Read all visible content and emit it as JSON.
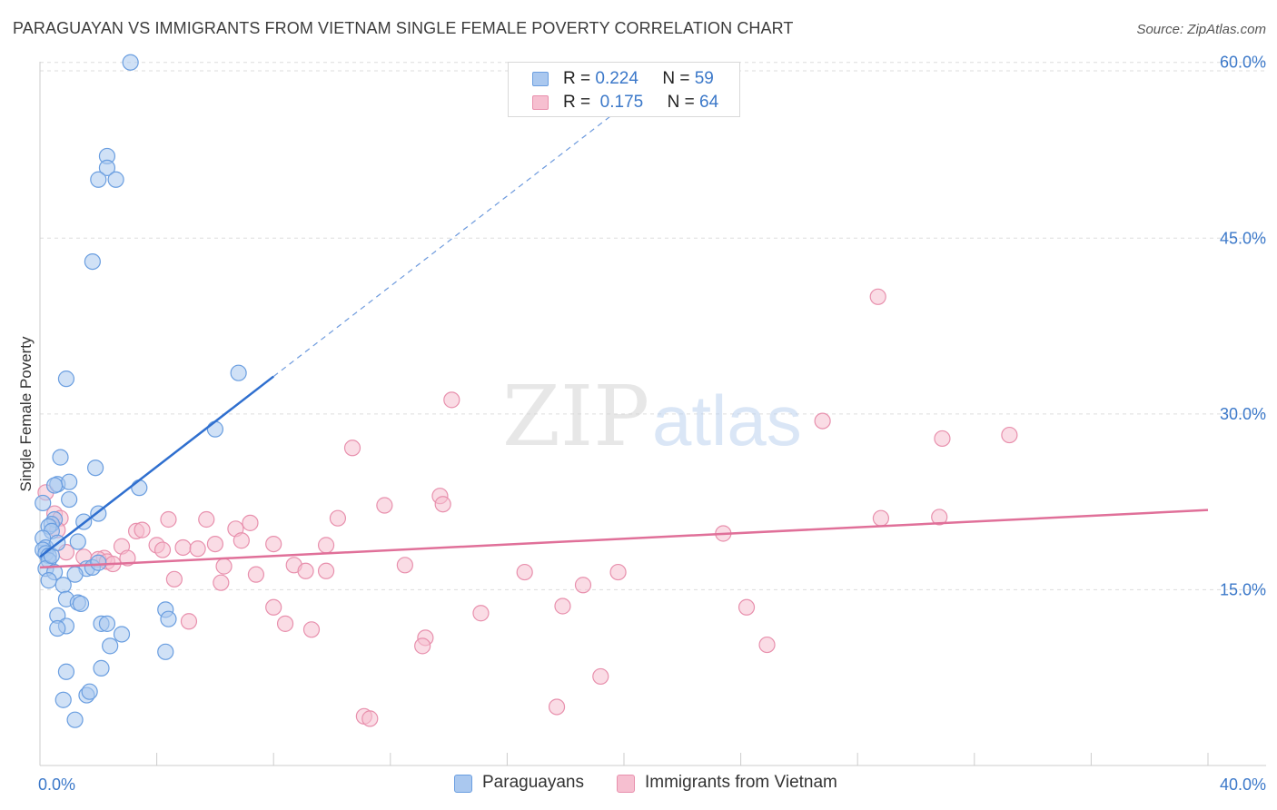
{
  "header": {
    "title": "PARAGUAYAN VS IMMIGRANTS FROM VIETNAM SINGLE FEMALE POVERTY CORRELATION CHART",
    "source": "Source: ZipAtlas.com"
  },
  "watermark": {
    "zip": "ZIP",
    "atlas": "atlas"
  },
  "legend": {
    "series1": {
      "r_label": "R =",
      "r_value": "0.224",
      "n_label": "N =",
      "n_value": "59"
    },
    "series2": {
      "r_label": "R =",
      "r_value": "0.175",
      "n_label": "N =",
      "n_value": "64"
    }
  },
  "bottom_legend": {
    "series1": "Paraguayans",
    "series2": "Immigrants from Vietnam"
  },
  "colors": {
    "blue_fill": "#aac8ef",
    "blue_stroke": "#6a9ee0",
    "blue_line": "#2f6fcf",
    "pink_fill": "#f6bfd0",
    "pink_stroke": "#e890ad",
    "pink_line": "#e07099",
    "tick": "#3b78c9",
    "grid": "#dddddd"
  },
  "chart_data": {
    "type": "scatter",
    "title": "PARAGUAYAN VS IMMIGRANTS FROM VIETNAM SINGLE FEMALE POVERTY CORRELATION CHART",
    "xlabel": "",
    "ylabel": "Single Female Poverty",
    "xlim": [
      0,
      40
    ],
    "ylim": [
      0,
      63
    ],
    "x_tick_labels": [
      "0.0%",
      "40.0%"
    ],
    "y_ticks": [
      15,
      30,
      45,
      60
    ],
    "y_tick_labels": [
      "15.0%",
      "30.0%",
      "45.0%",
      "60.0%"
    ],
    "grid": true,
    "series": [
      {
        "name": "Paraguayans",
        "R": 0.224,
        "N": 59,
        "trend": {
          "x0": 0.0,
          "y0": 17.8,
          "x1": 8.0,
          "y1": 33.2,
          "dash_to_x": 21.3,
          "dash_to_y": 58.8
        },
        "points": [
          [
            3.1,
            60.0
          ],
          [
            2.3,
            52.0
          ],
          [
            2.3,
            51.0
          ],
          [
            2.0,
            50.0
          ],
          [
            2.6,
            50.0
          ],
          [
            1.8,
            43.0
          ],
          [
            6.8,
            33.5
          ],
          [
            0.9,
            33.0
          ],
          [
            6.0,
            28.7
          ],
          [
            0.7,
            26.3
          ],
          [
            1.9,
            25.4
          ],
          [
            3.4,
            23.7
          ],
          [
            0.6,
            24.0
          ],
          [
            1.0,
            24.2
          ],
          [
            0.5,
            23.9
          ],
          [
            1.0,
            22.7
          ],
          [
            0.1,
            22.4
          ],
          [
            0.5,
            21.0
          ],
          [
            2.0,
            21.5
          ],
          [
            1.5,
            20.8
          ],
          [
            0.4,
            20.6
          ],
          [
            0.3,
            20.4
          ],
          [
            0.4,
            20.0
          ],
          [
            0.1,
            19.4
          ],
          [
            1.3,
            19.1
          ],
          [
            0.2,
            18.6
          ],
          [
            0.1,
            18.4
          ],
          [
            0.2,
            18.1
          ],
          [
            0.3,
            17.9
          ],
          [
            0.3,
            17.5
          ],
          [
            0.2,
            16.8
          ],
          [
            1.6,
            16.8
          ],
          [
            1.8,
            16.9
          ],
          [
            0.5,
            16.5
          ],
          [
            1.2,
            16.3
          ],
          [
            0.8,
            15.4
          ],
          [
            0.3,
            15.8
          ],
          [
            0.9,
            14.2
          ],
          [
            1.3,
            13.9
          ],
          [
            4.3,
            13.3
          ],
          [
            0.6,
            12.8
          ],
          [
            4.4,
            12.5
          ],
          [
            2.1,
            12.1
          ],
          [
            2.3,
            12.1
          ],
          [
            0.9,
            11.9
          ],
          [
            0.6,
            11.7
          ],
          [
            2.8,
            11.2
          ],
          [
            2.4,
            10.2
          ],
          [
            4.3,
            9.7
          ],
          [
            0.9,
            8.0
          ],
          [
            2.1,
            8.3
          ],
          [
            0.8,
            5.6
          ],
          [
            1.6,
            6.0
          ],
          [
            1.7,
            6.3
          ],
          [
            1.2,
            3.9
          ],
          [
            1.4,
            13.8
          ],
          [
            2.0,
            17.3
          ],
          [
            0.4,
            17.9
          ],
          [
            0.6,
            19.0
          ]
        ]
      },
      {
        "name": "Immigrants from Vietnam",
        "R": 0.175,
        "N": 64,
        "trend": {
          "x0": 0.0,
          "y0": 16.9,
          "x1": 40.0,
          "y1": 21.8
        },
        "points": [
          [
            28.7,
            40.0
          ],
          [
            14.1,
            31.2
          ],
          [
            26.8,
            29.4
          ],
          [
            30.9,
            27.9
          ],
          [
            33.2,
            28.2
          ],
          [
            10.7,
            27.1
          ],
          [
            0.2,
            23.3
          ],
          [
            0.5,
            21.5
          ],
          [
            13.7,
            23.0
          ],
          [
            13.8,
            22.3
          ],
          [
            11.8,
            22.2
          ],
          [
            0.7,
            21.1
          ],
          [
            4.4,
            21.0
          ],
          [
            5.7,
            21.0
          ],
          [
            7.2,
            20.7
          ],
          [
            10.2,
            21.1
          ],
          [
            28.8,
            21.1
          ],
          [
            30.8,
            21.2
          ],
          [
            6.7,
            20.2
          ],
          [
            3.3,
            20.0
          ],
          [
            3.5,
            20.1
          ],
          [
            0.6,
            20.1
          ],
          [
            23.4,
            19.8
          ],
          [
            6.9,
            19.2
          ],
          [
            6.0,
            18.9
          ],
          [
            4.0,
            18.8
          ],
          [
            2.8,
            18.7
          ],
          [
            8.0,
            18.9
          ],
          [
            9.8,
            18.8
          ],
          [
            4.9,
            18.6
          ],
          [
            5.4,
            18.5
          ],
          [
            4.2,
            18.4
          ],
          [
            0.9,
            18.2
          ],
          [
            1.5,
            17.8
          ],
          [
            2.2,
            17.7
          ],
          [
            2.0,
            17.6
          ],
          [
            3.0,
            17.7
          ],
          [
            2.3,
            17.4
          ],
          [
            2.5,
            17.2
          ],
          [
            6.3,
            17.0
          ],
          [
            8.7,
            17.1
          ],
          [
            12.5,
            17.1
          ],
          [
            9.1,
            16.6
          ],
          [
            9.8,
            16.6
          ],
          [
            16.6,
            16.5
          ],
          [
            19.8,
            16.5
          ],
          [
            7.4,
            16.3
          ],
          [
            4.6,
            15.9
          ],
          [
            6.2,
            15.6
          ],
          [
            18.6,
            15.4
          ],
          [
            8.0,
            13.5
          ],
          [
            17.9,
            13.6
          ],
          [
            24.2,
            13.5
          ],
          [
            15.1,
            13.0
          ],
          [
            8.4,
            12.1
          ],
          [
            5.1,
            12.3
          ],
          [
            9.3,
            11.6
          ],
          [
            13.2,
            10.9
          ],
          [
            13.1,
            10.2
          ],
          [
            24.9,
            10.3
          ],
          [
            19.2,
            7.6
          ],
          [
            17.7,
            5.0
          ],
          [
            11.1,
            4.2
          ],
          [
            11.3,
            4.0
          ]
        ]
      }
    ]
  }
}
